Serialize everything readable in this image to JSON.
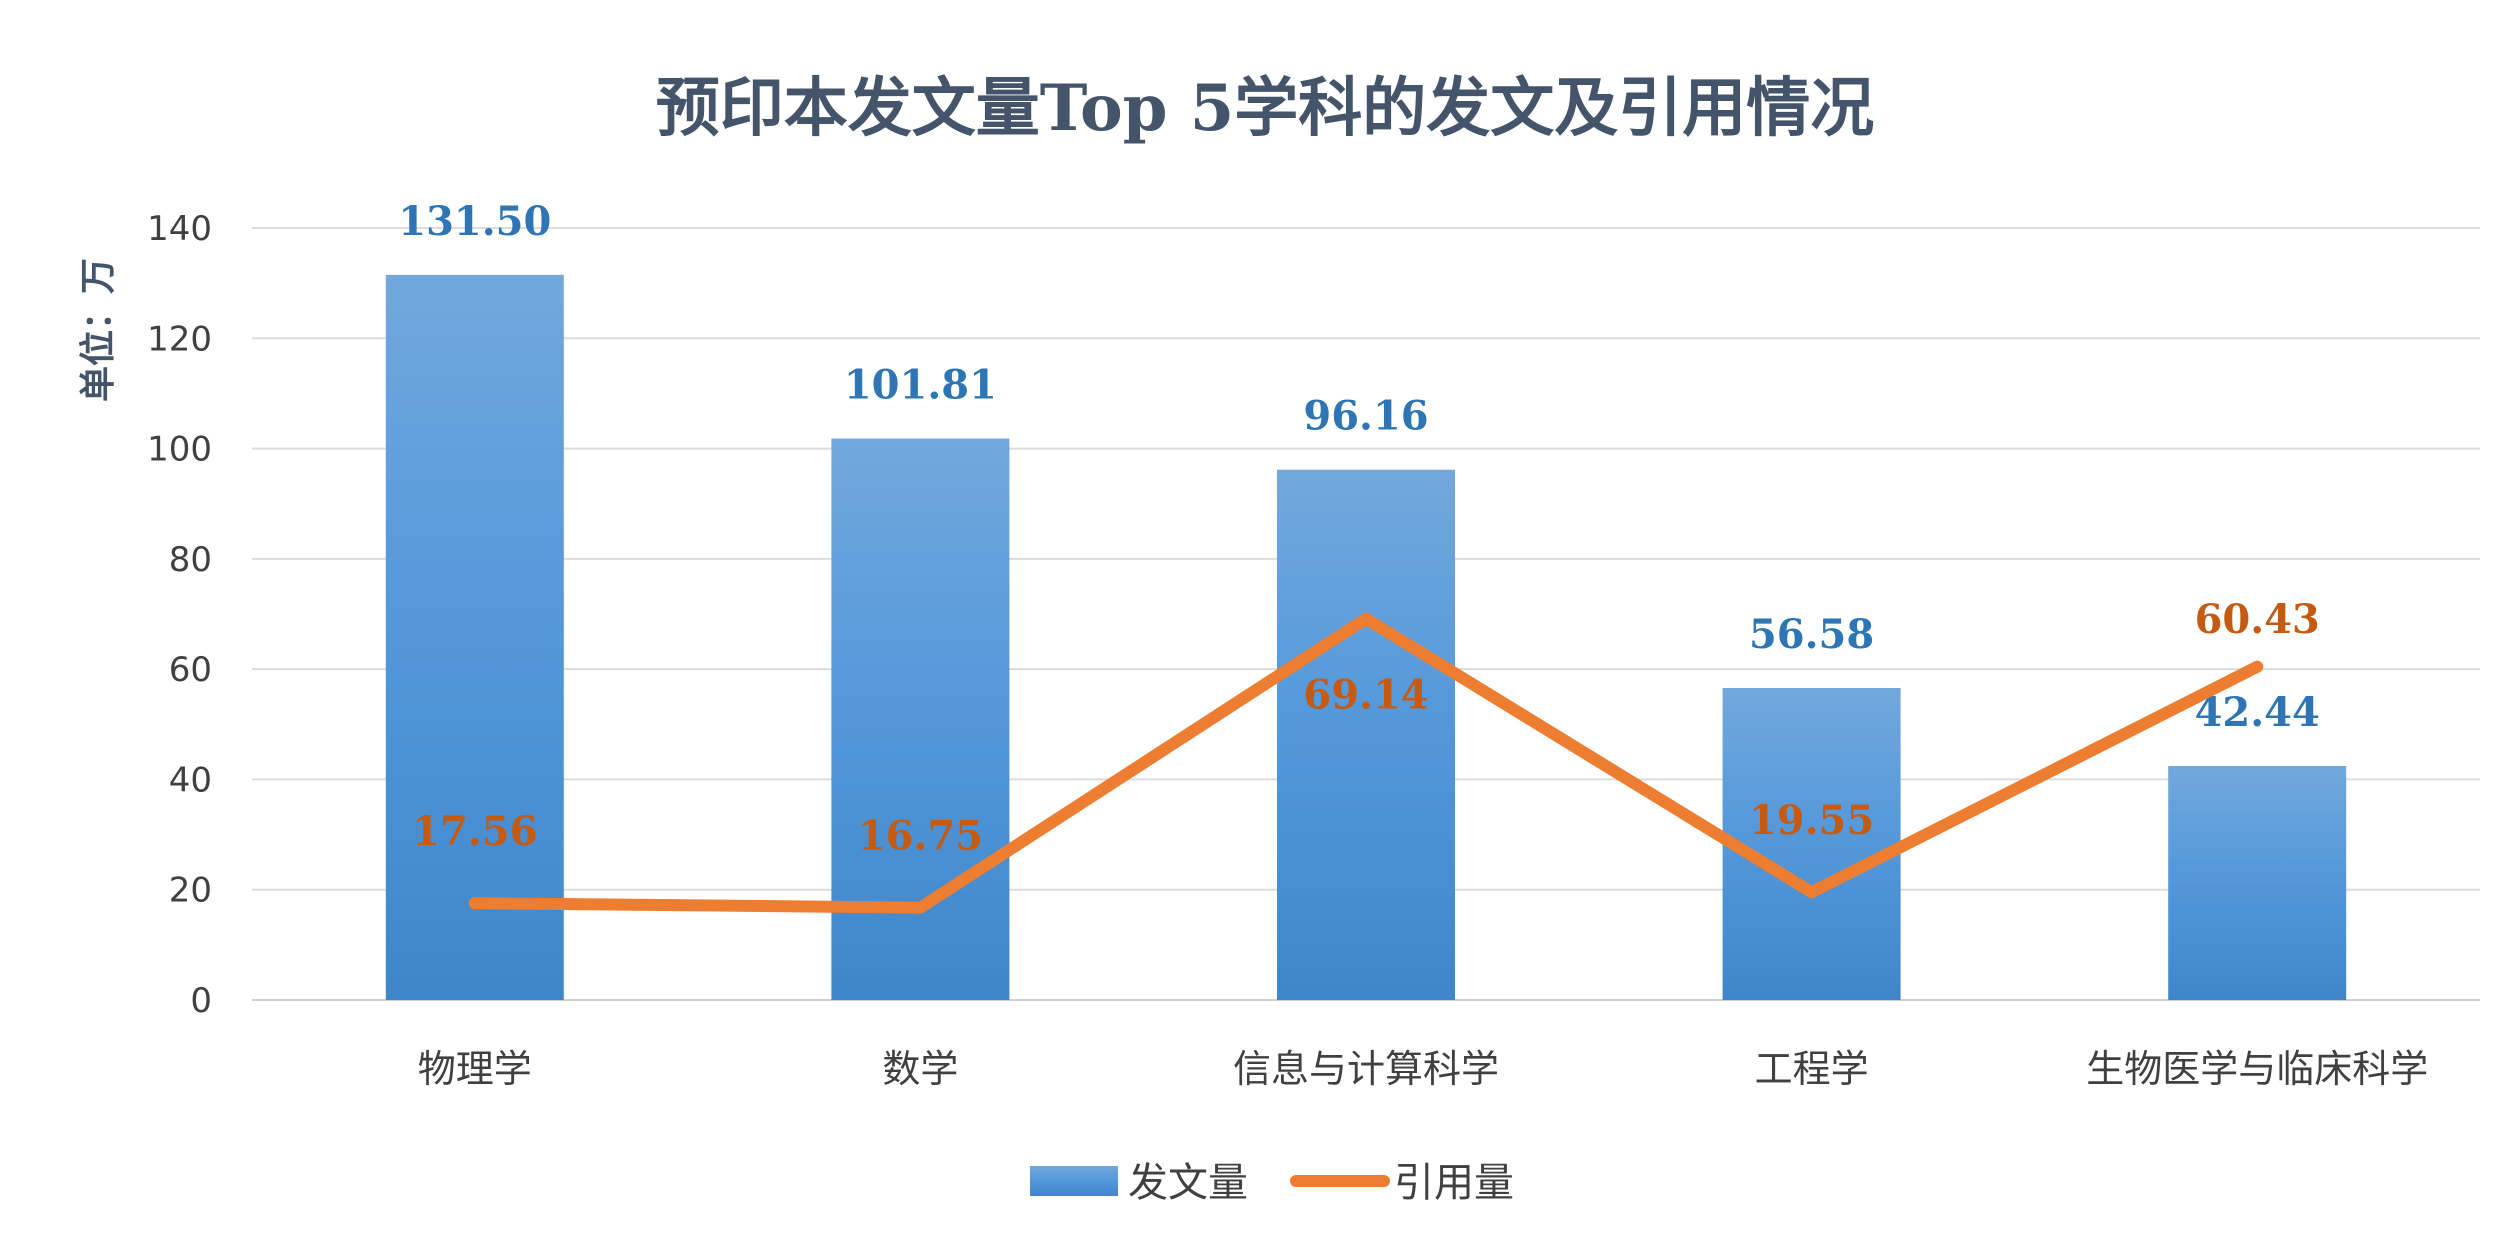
{
  "chart_data": {
    "type": "bar",
    "title": "预印本发文量Top 5学科的发文及引用情况",
    "ylabel": "单位：万",
    "xlabel": "",
    "ylim": [
      0,
      140
    ],
    "yticks": [
      0,
      20,
      40,
      60,
      80,
      100,
      120,
      140
    ],
    "grid": true,
    "legend_position": "bottom",
    "categories": [
      "物理学",
      "数学",
      "信息与计算科学",
      "工程学",
      "生物医学与临床科学"
    ],
    "series": [
      {
        "name": "发文量",
        "type": "bar",
        "color": "#4f94d8",
        "values": [
          131.5,
          101.81,
          96.16,
          56.58,
          42.44
        ],
        "labels": [
          "131.50",
          "101.81",
          "96.16",
          "56.58",
          "42.44"
        ]
      },
      {
        "name": "引用量",
        "type": "line",
        "color": "#ed7d31",
        "values": [
          17.56,
          16.75,
          69.14,
          19.55,
          60.43
        ],
        "labels": [
          "17.56",
          "16.75",
          "69.14",
          "19.55",
          "60.43"
        ]
      }
    ]
  }
}
